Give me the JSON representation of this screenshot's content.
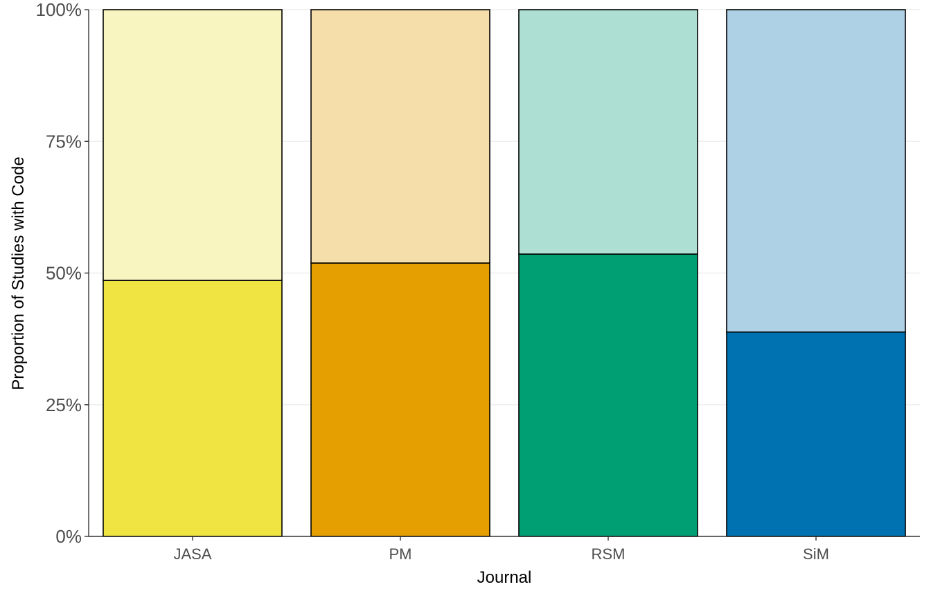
{
  "chart_data": {
    "type": "bar",
    "stacked": true,
    "categories": [
      "JASA",
      "PM",
      "RSM",
      "SiM"
    ],
    "series": [
      {
        "values": [
          48.6,
          51.9,
          53.6,
          38.8
        ],
        "colors": [
          "#F0E442",
          "#E69F00",
          "#009E73",
          "#0072B2"
        ]
      },
      {
        "values": [
          51.4,
          48.1,
          46.4,
          61.2
        ],
        "colors": [
          "#F8F5C0",
          "#F5DEAA",
          "#ADDFD2",
          "#AED1E6"
        ]
      }
    ],
    "y_ticks": [
      {
        "value": 0,
        "label": "0%"
      },
      {
        "value": 25,
        "label": "25%"
      },
      {
        "value": 50,
        "label": "50%"
      },
      {
        "value": 75,
        "label": "75%"
      },
      {
        "value": 100,
        "label": "100%"
      }
    ],
    "ylim": [
      0,
      100
    ],
    "xlabel": "Journal",
    "ylabel": "Proportion of Studies with Code",
    "grid": true,
    "legend": "none"
  }
}
